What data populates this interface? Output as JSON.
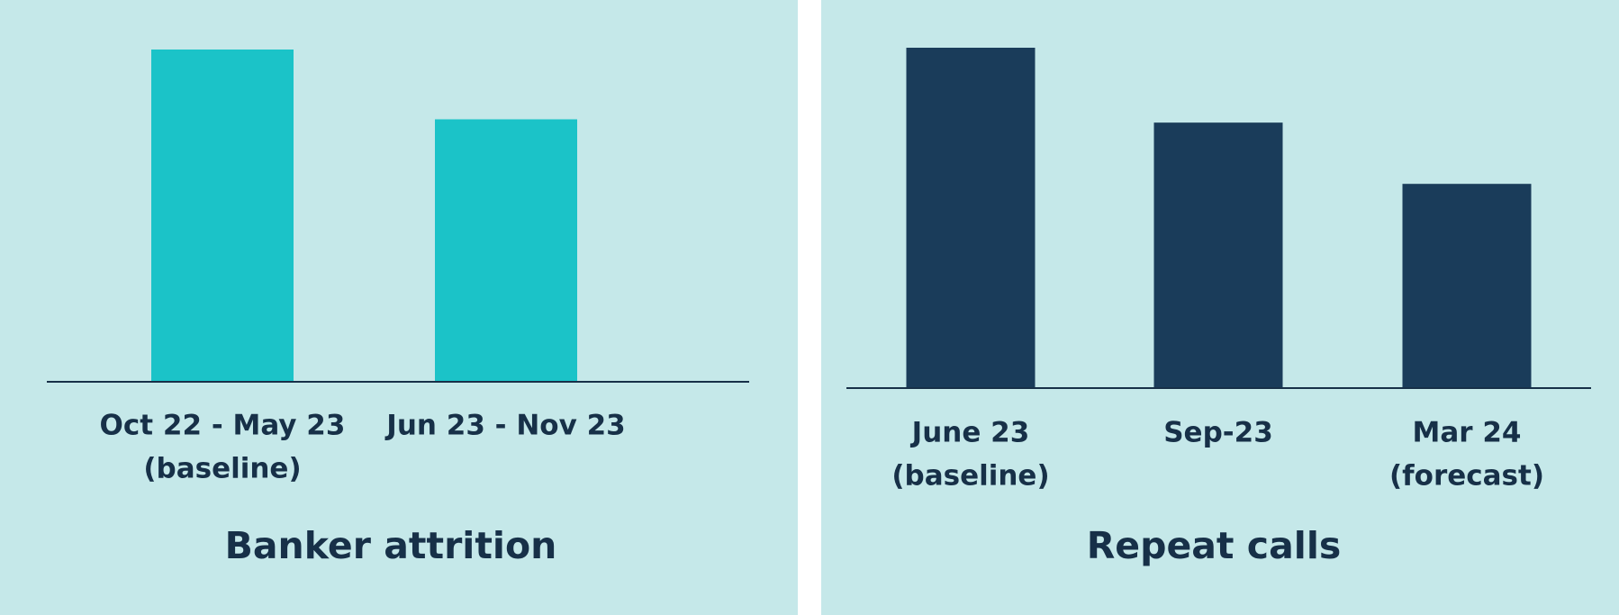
{
  "chart_data": [
    {
      "type": "bar",
      "title": "Banker attrition",
      "categories": [
        [
          "Oct 22 - May 23",
          "(baseline)"
        ],
        [
          "Jun 23 - Nov 23"
        ]
      ],
      "values": [
        100,
        79
      ],
      "color": "#1bc3c8",
      "ylim": [
        0,
        100
      ]
    },
    {
      "type": "bar",
      "title": "Repeat calls",
      "categories": [
        [
          "June 23",
          "(baseline)"
        ],
        [
          "Sep-23"
        ],
        [
          "Mar 24",
          "(forecast)"
        ]
      ],
      "values": [
        100,
        78,
        60
      ],
      "color": "#1a3c5a",
      "ylim": [
        0,
        100
      ]
    }
  ]
}
